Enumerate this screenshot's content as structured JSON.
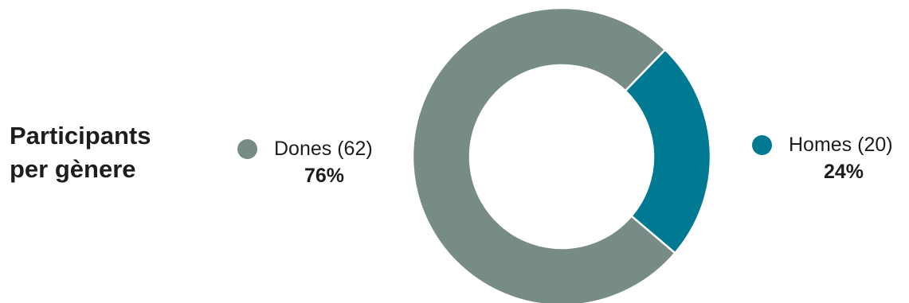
{
  "chart_data": {
    "type": "pie",
    "title_lines": [
      "Participants",
      "per gènere"
    ],
    "categories": [
      "Dones (62)",
      "Homes (20)"
    ],
    "counts": [
      62,
      20
    ],
    "values": [
      76,
      24
    ],
    "value_labels": [
      "76%",
      "24%"
    ],
    "colors": [
      "#778b87",
      "#007993"
    ],
    "donut": true,
    "legend": "beside"
  }
}
